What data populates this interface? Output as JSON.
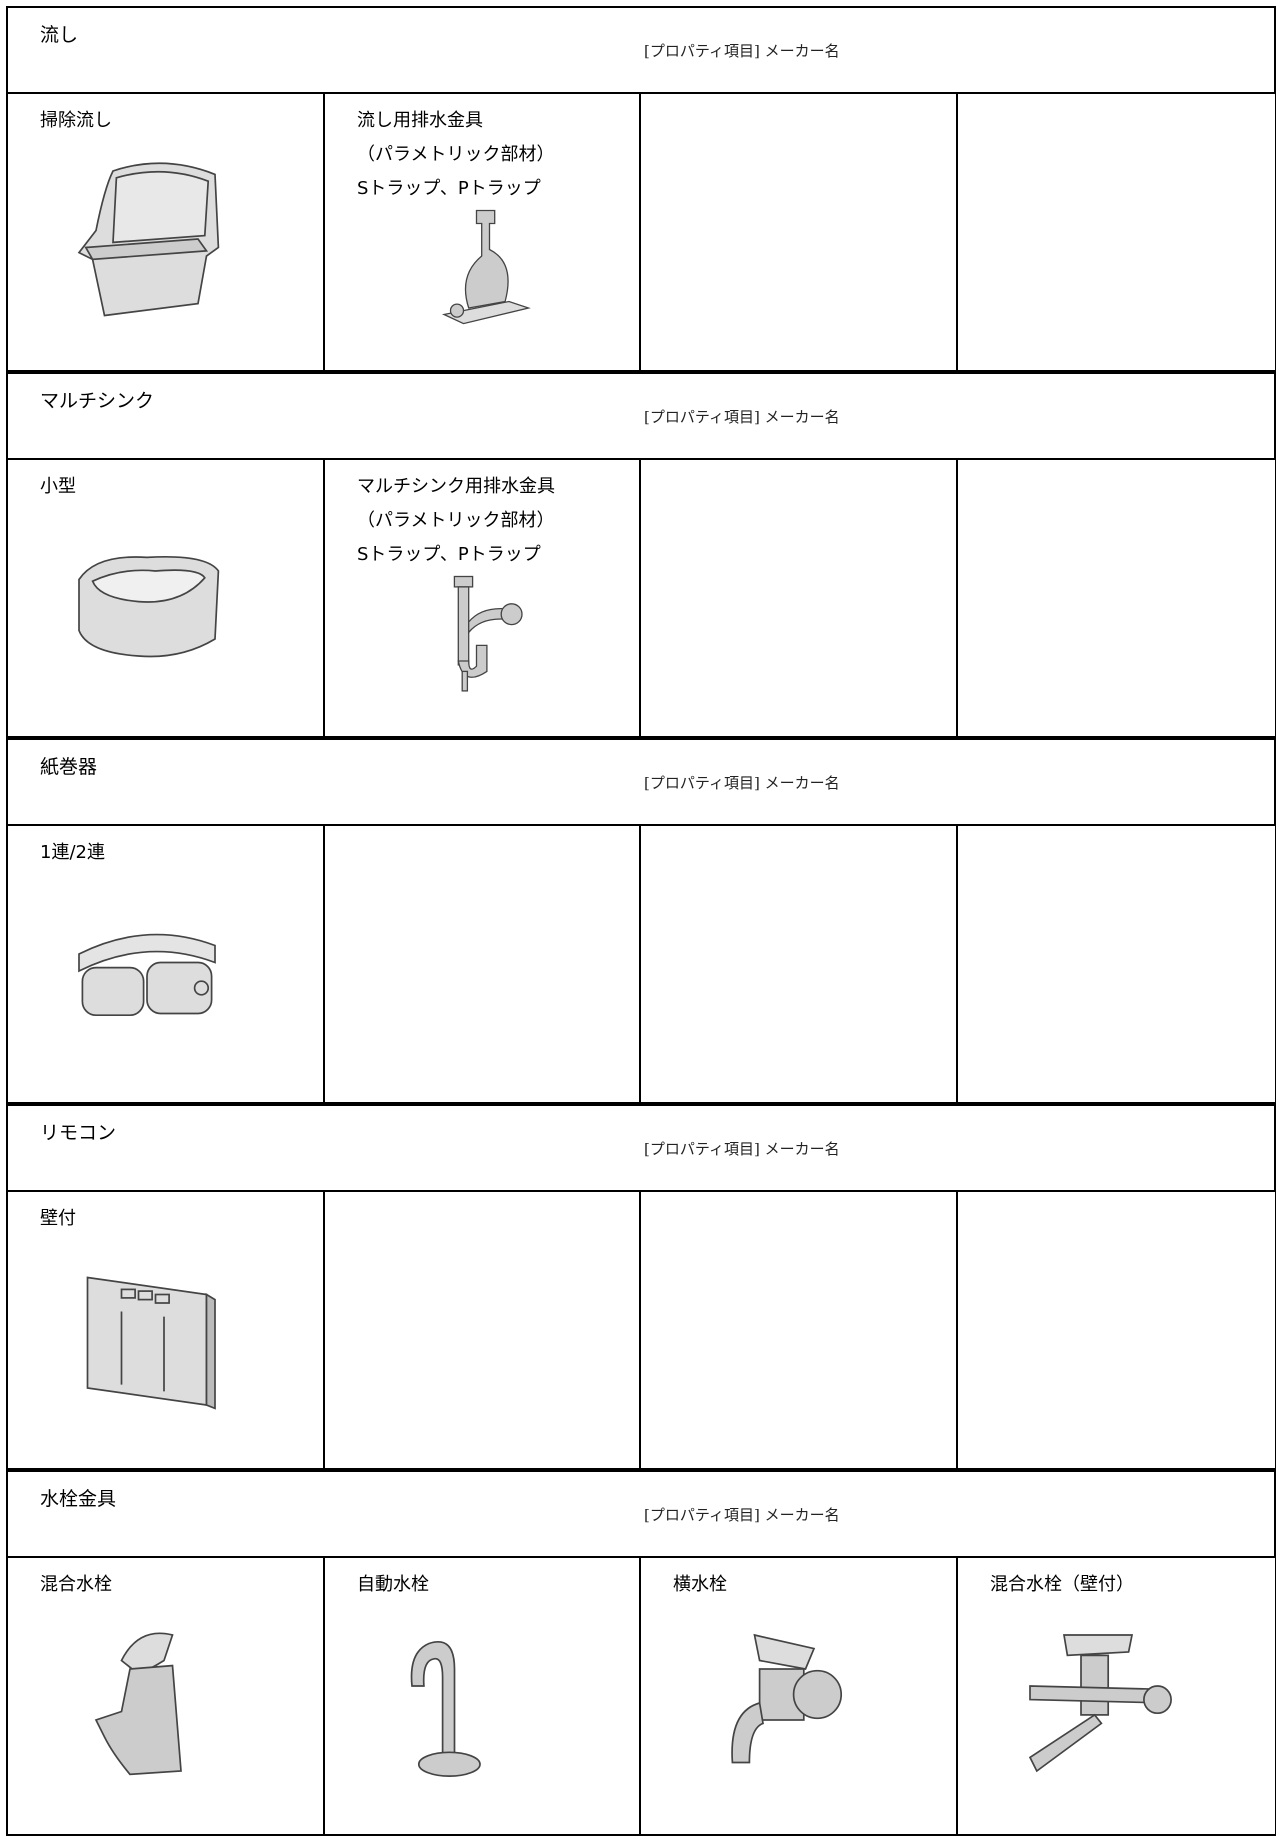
{
  "sections": [
    {
      "title": "流し",
      "property": "[プロパティ項目] メーカー名",
      "items": [
        {
          "lines": [
            "掃除流し"
          ]
        },
        {
          "lines": [
            "流し用排水金具",
            "（パラメトリック部材）",
            "Sトラップ、Pトラップ"
          ]
        }
      ]
    },
    {
      "title": "マルチシンク",
      "property": "[プロパティ項目] メーカー名",
      "items": [
        {
          "lines": [
            "小型"
          ]
        },
        {
          "lines": [
            "マルチシンク用排水金具",
            "（パラメトリック部材）",
            "Sトラップ、Pトラップ"
          ]
        }
      ]
    },
    {
      "title": "紙巻器",
      "property": "[プロパティ項目] メーカー名",
      "items": [
        {
          "lines": [
            "1連/2連"
          ]
        }
      ]
    },
    {
      "title": "リモコン",
      "property": "[プロパティ項目] メーカー名",
      "items": [
        {
          "lines": [
            "壁付"
          ]
        }
      ]
    },
    {
      "title": "水栓金具",
      "property": "[プロパティ項目] メーカー名",
      "items": [
        {
          "lines": [
            "混合水栓"
          ]
        },
        {
          "lines": [
            "自動水栓"
          ]
        },
        {
          "lines": [
            "横水栓"
          ]
        },
        {
          "lines": [
            "混合水栓（壁付）"
          ]
        }
      ]
    }
  ]
}
